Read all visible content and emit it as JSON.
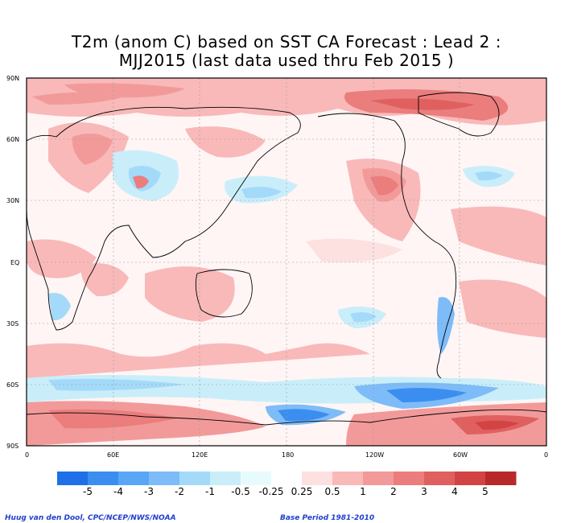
{
  "title": {
    "line1": "T2m (anom C) based on SST CA Forecast : Lead 2 :",
    "line2": "MJJ2015 (last data used thru Feb 2015 )"
  },
  "map": {
    "lat_labels": [
      "90N",
      "60N",
      "30N",
      "EQ",
      "30S",
      "60S",
      "90S"
    ],
    "lon_labels": [
      "0",
      "60E",
      "120E",
      "180",
      "120W",
      "60W",
      "0"
    ]
  },
  "colorbar": {
    "colors": [
      "#1f6fe8",
      "#3b8ef0",
      "#5aa6f6",
      "#7dbcf8",
      "#a4daf9",
      "#c9eefa",
      "#e8fbfc",
      "#ffffff",
      "#fde0e0",
      "#f9b9b9",
      "#f29a9a",
      "#eb7d7d",
      "#e06060",
      "#d24444",
      "#b82a2a"
    ],
    "labels": [
      "-5",
      "-4",
      "-3",
      "-2",
      "-1",
      "-0.5",
      "-0.25",
      "0.25",
      "0.5",
      "1",
      "2",
      "3",
      "4",
      "5"
    ]
  },
  "footer": {
    "credit": "Huug van den Dool, CPC/NCEP/NWS/NOAA",
    "base_period": "Base Period 1981-2010"
  }
}
